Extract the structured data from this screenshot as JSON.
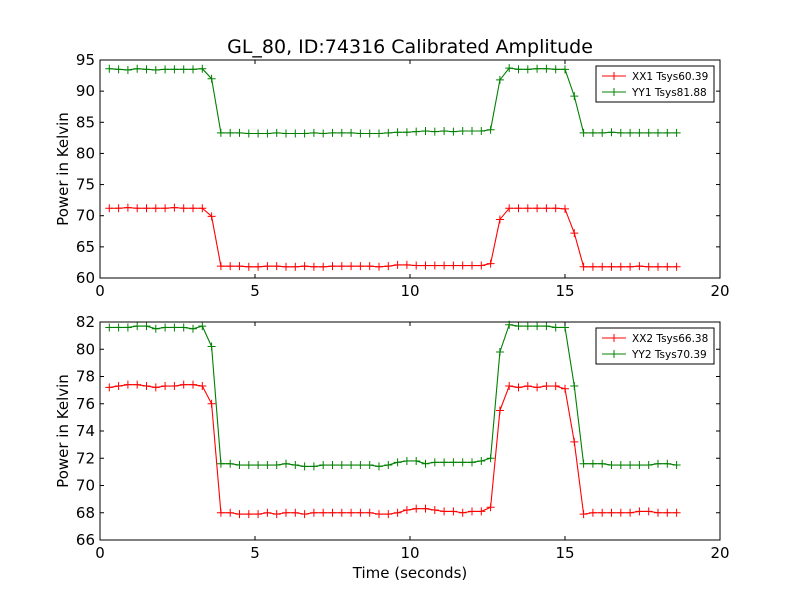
{
  "chart_data": [
    {
      "type": "line",
      "title": "GL_80, ID:74316 Calibrated Amplitude",
      "xlabel": "",
      "ylabel": "Power in Kelvin",
      "xlim": [
        0,
        20
      ],
      "ylim": [
        60,
        95
      ],
      "xticks": [
        "0",
        "5",
        "10",
        "15",
        "20"
      ],
      "yticks": [
        "60",
        "65",
        "70",
        "75",
        "80",
        "85",
        "90",
        "95"
      ],
      "grid": false,
      "legend_position": "top-right",
      "x": [
        0.3,
        0.6,
        0.9,
        1.2,
        1.5,
        1.8,
        2.1,
        2.4,
        2.7,
        3.0,
        3.3,
        3.6,
        3.9,
        4.2,
        4.5,
        4.8,
        5.1,
        5.4,
        5.7,
        6.0,
        6.3,
        6.6,
        6.9,
        7.2,
        7.5,
        7.8,
        8.1,
        8.4,
        8.7,
        9.0,
        9.3,
        9.6,
        9.9,
        10.2,
        10.5,
        10.8,
        11.1,
        11.4,
        11.7,
        12.0,
        12.3,
        12.6,
        12.9,
        13.2,
        13.5,
        13.8,
        14.1,
        14.4,
        14.7,
        15.0,
        15.3,
        15.6,
        15.9,
        16.2,
        16.5,
        16.8,
        17.1,
        17.4,
        17.7,
        18.0,
        18.3,
        18.6
      ],
      "series": [
        {
          "name": "XX1 Tsys60.39",
          "color": "#ff0000",
          "values": [
            71.2,
            71.2,
            71.3,
            71.2,
            71.2,
            71.2,
            71.2,
            71.3,
            71.2,
            71.2,
            71.2,
            69.9,
            61.9,
            61.9,
            61.9,
            61.8,
            61.8,
            61.9,
            61.9,
            61.8,
            61.8,
            61.9,
            61.8,
            61.8,
            61.9,
            61.9,
            61.9,
            61.9,
            61.9,
            61.8,
            61.9,
            62.1,
            62.1,
            62.0,
            62.0,
            62.0,
            62.0,
            62.0,
            62.0,
            62.0,
            62.0,
            62.3,
            69.4,
            71.2,
            71.2,
            71.2,
            71.2,
            71.2,
            71.2,
            71.1,
            67.2,
            61.8,
            61.8,
            61.8,
            61.8,
            61.8,
            61.8,
            61.9,
            61.8,
            61.8,
            61.8,
            61.8
          ]
        },
        {
          "name": "YY1 Tsys81.88",
          "color": "#008000",
          "values": [
            93.6,
            93.5,
            93.4,
            93.6,
            93.5,
            93.4,
            93.5,
            93.5,
            93.5,
            93.5,
            93.6,
            92.0,
            83.3,
            83.3,
            83.3,
            83.2,
            83.2,
            83.2,
            83.3,
            83.2,
            83.2,
            83.2,
            83.3,
            83.2,
            83.3,
            83.3,
            83.3,
            83.2,
            83.2,
            83.2,
            83.3,
            83.4,
            83.4,
            83.5,
            83.6,
            83.5,
            83.6,
            83.5,
            83.6,
            83.6,
            83.6,
            83.8,
            91.8,
            93.7,
            93.5,
            93.5,
            93.6,
            93.6,
            93.5,
            93.5,
            89.2,
            83.3,
            83.3,
            83.3,
            83.4,
            83.3,
            83.3,
            83.3,
            83.3,
            83.3,
            83.3,
            83.3
          ]
        }
      ]
    },
    {
      "type": "line",
      "title": "",
      "xlabel": "Time (seconds)",
      "ylabel": "Power in Kelvin",
      "xlim": [
        0,
        20
      ],
      "ylim": [
        66,
        82
      ],
      "xticks": [
        "0",
        "5",
        "10",
        "15",
        "20"
      ],
      "yticks": [
        "66",
        "68",
        "70",
        "72",
        "74",
        "76",
        "78",
        "80",
        "82"
      ],
      "grid": false,
      "legend_position": "top-right",
      "x": [
        0.3,
        0.6,
        0.9,
        1.2,
        1.5,
        1.8,
        2.1,
        2.4,
        2.7,
        3.0,
        3.3,
        3.6,
        3.9,
        4.2,
        4.5,
        4.8,
        5.1,
        5.4,
        5.7,
        6.0,
        6.3,
        6.6,
        6.9,
        7.2,
        7.5,
        7.8,
        8.1,
        8.4,
        8.7,
        9.0,
        9.3,
        9.6,
        9.9,
        10.2,
        10.5,
        10.8,
        11.1,
        11.4,
        11.7,
        12.0,
        12.3,
        12.6,
        12.9,
        13.2,
        13.5,
        13.8,
        14.1,
        14.4,
        14.7,
        15.0,
        15.3,
        15.6,
        15.9,
        16.2,
        16.5,
        16.8,
        17.1,
        17.4,
        17.7,
        18.0,
        18.3,
        18.6
      ],
      "series": [
        {
          "name": "XX2 Tsys66.38",
          "color": "#ff0000",
          "values": [
            77.2,
            77.3,
            77.4,
            77.4,
            77.3,
            77.2,
            77.3,
            77.3,
            77.4,
            77.4,
            77.3,
            76.0,
            68.0,
            68.0,
            67.9,
            67.9,
            67.9,
            68.0,
            67.9,
            68.0,
            68.0,
            67.9,
            68.0,
            68.0,
            68.0,
            68.0,
            68.0,
            68.0,
            68.0,
            67.9,
            67.9,
            68.0,
            68.2,
            68.3,
            68.3,
            68.2,
            68.1,
            68.1,
            68.0,
            68.1,
            68.1,
            68.4,
            75.5,
            77.3,
            77.2,
            77.3,
            77.2,
            77.3,
            77.3,
            77.1,
            73.2,
            67.9,
            68.0,
            68.0,
            68.0,
            68.0,
            68.0,
            68.1,
            68.1,
            68.0,
            68.0,
            68.0
          ]
        },
        {
          "name": "YY2 Tsys70.39",
          "color": "#008000",
          "values": [
            81.6,
            81.6,
            81.6,
            81.7,
            81.7,
            81.5,
            81.6,
            81.6,
            81.6,
            81.5,
            81.7,
            80.2,
            71.6,
            71.6,
            71.5,
            71.5,
            71.5,
            71.5,
            71.5,
            71.6,
            71.5,
            71.4,
            71.4,
            71.5,
            71.5,
            71.5,
            71.5,
            71.5,
            71.5,
            71.4,
            71.5,
            71.7,
            71.8,
            71.8,
            71.6,
            71.7,
            71.7,
            71.7,
            71.7,
            71.7,
            71.8,
            72.0,
            79.8,
            81.8,
            81.7,
            81.7,
            81.7,
            81.7,
            81.6,
            81.6,
            77.3,
            71.6,
            71.6,
            71.6,
            71.5,
            71.5,
            71.5,
            71.5,
            71.5,
            71.6,
            71.6,
            71.5
          ]
        }
      ]
    }
  ]
}
